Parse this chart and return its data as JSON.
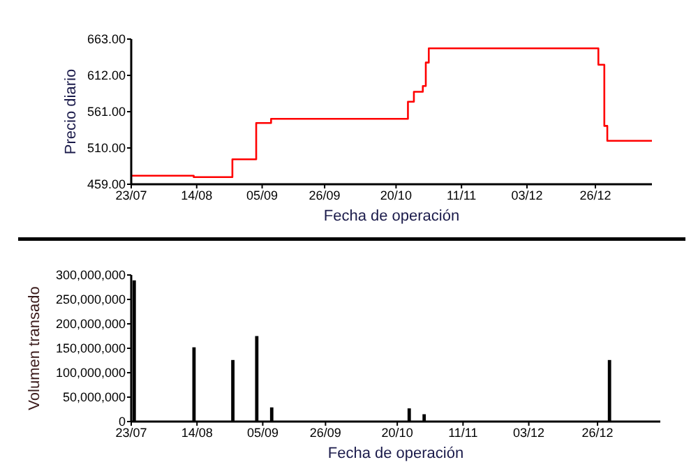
{
  "chart_data": [
    {
      "type": "step",
      "xlabel": "Fecha de operación",
      "ylabel": "Precio diario",
      "xlim": [
        "2008-07-23",
        "2009-01-14"
      ],
      "xticks": [
        {
          "value": "2008-07-23",
          "label": "23/07"
        },
        {
          "value": "2008-08-14",
          "label": "14/08"
        },
        {
          "value": "2008-09-05",
          "label": "05/09"
        },
        {
          "value": "2008-09-26",
          "label": "26/09"
        },
        {
          "value": "2008-10-20",
          "label": "20/10"
        },
        {
          "value": "2008-11-11",
          "label": "11/11"
        },
        {
          "value": "2008-12-03",
          "label": "03/12"
        },
        {
          "value": "2008-12-26",
          "label": "26/12"
        }
      ],
      "ylim": [
        459,
        663
      ],
      "yticks": [
        {
          "value": 459,
          "label": "459.00"
        },
        {
          "value": 510,
          "label": "510.00"
        },
        {
          "value": 561,
          "label": "561.00"
        },
        {
          "value": 612,
          "label": "612.00"
        },
        {
          "value": 663,
          "label": "663.00"
        }
      ],
      "grid": false,
      "series": [
        {
          "color": "#ff0000",
          "x": [
            "2008-07-23",
            "2008-08-13",
            "2008-08-26",
            "2008-09-03",
            "2008-09-08",
            "2008-10-24",
            "2008-10-26",
            "2008-10-29",
            "2008-10-30",
            "2008-10-31",
            "2008-12-27",
            "2008-12-29",
            "2008-12-30",
            "2009-01-14"
          ],
          "values": [
            471,
            469,
            494,
            545,
            551,
            575,
            589,
            597,
            630,
            650,
            627,
            541,
            520,
            520
          ]
        }
      ]
    },
    {
      "type": "bar",
      "xlabel": "Fecha de operación",
      "ylabel": "Volumen transado",
      "xlim": [
        "2008-07-23",
        "2009-01-16"
      ],
      "xticks": [
        {
          "value": "2008-07-23",
          "label": "23/07"
        },
        {
          "value": "2008-08-14",
          "label": "14/08"
        },
        {
          "value": "2008-09-05",
          "label": "05/09"
        },
        {
          "value": "2008-09-26",
          "label": "26/09"
        },
        {
          "value": "2008-10-20",
          "label": "20/10"
        },
        {
          "value": "2008-11-11",
          "label": "11/11"
        },
        {
          "value": "2008-12-03",
          "label": "03/12"
        },
        {
          "value": "2008-12-26",
          "label": "26/12"
        }
      ],
      "ylim": [
        0,
        300000000
      ],
      "yticks": [
        0,
        {
          "value": 50000000,
          "label": "50,000,000"
        },
        {
          "value": 100000000,
          "label": "100,000,000"
        },
        {
          "value": 150000000,
          "label": "150,000,000"
        },
        {
          "value": 200000000,
          "label": "200,000,000"
        },
        {
          "value": 250000000,
          "label": "250,000,000"
        },
        {
          "value": 300000000,
          "label": "300,000,000"
        }
      ],
      "grid": false,
      "series": [
        {
          "color": "#000000",
          "x": [
            "2008-07-24",
            "2008-08-13",
            "2008-08-26",
            "2008-09-03",
            "2008-09-08",
            "2008-10-24",
            "2008-10-29",
            "2008-12-30"
          ],
          "values": [
            289000000,
            152000000,
            126000000,
            175000000,
            29000000,
            27000000,
            15000000,
            126000000
          ]
        }
      ]
    }
  ]
}
